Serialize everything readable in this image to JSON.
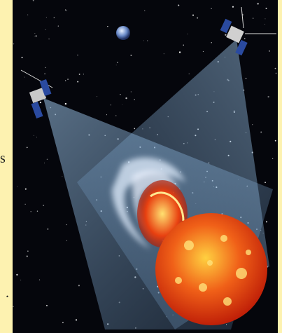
{
  "fragments": [
    "s",
    "."
  ]
}
